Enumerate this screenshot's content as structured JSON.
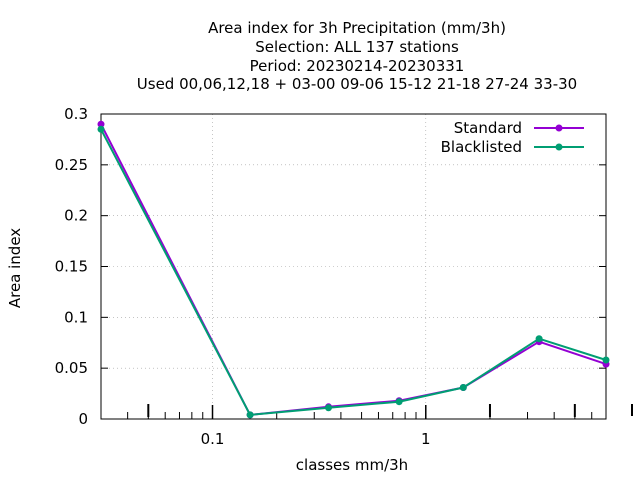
{
  "chart_data": {
    "type": "line",
    "title_lines": [
      "Area index  for 3h Precipitation (mm/3h)",
      "Selection: ALL    137 stations",
      "Period: 20230214-20230331",
      "Used  00,06,12,18 + 03-00 09-06 15-12 21-18 27-24 33-30"
    ],
    "xlabel": "classes mm/3h",
    "ylabel": "Area index",
    "x_scale": "log",
    "xlim": [
      0.03,
      7.0
    ],
    "ylim": [
      0,
      0.3
    ],
    "x_ticks": [
      0.1,
      1
    ],
    "x_tick_labels": [
      "0.1",
      "1"
    ],
    "y_ticks": [
      0,
      0.05,
      0.1,
      0.15,
      0.2,
      0.25,
      0.3
    ],
    "y_tick_labels": [
      "0",
      "0.05",
      "0.1",
      "0.15",
      "0.2",
      "0.25",
      "0.3"
    ],
    "grid": true,
    "legend_position": "top-right",
    "x": [
      0.03,
      0.15,
      0.35,
      0.75,
      1.5,
      3.4,
      7.0
    ],
    "series": [
      {
        "name": "Standard",
        "color": "#9400d3",
        "values": [
          0.29,
          0.004,
          0.012,
          0.018,
          0.031,
          0.076,
          0.054
        ]
      },
      {
        "name": "Blacklisted",
        "color": "#009e73",
        "values": [
          0.285,
          0.004,
          0.011,
          0.017,
          0.031,
          0.079,
          0.058
        ]
      }
    ]
  }
}
